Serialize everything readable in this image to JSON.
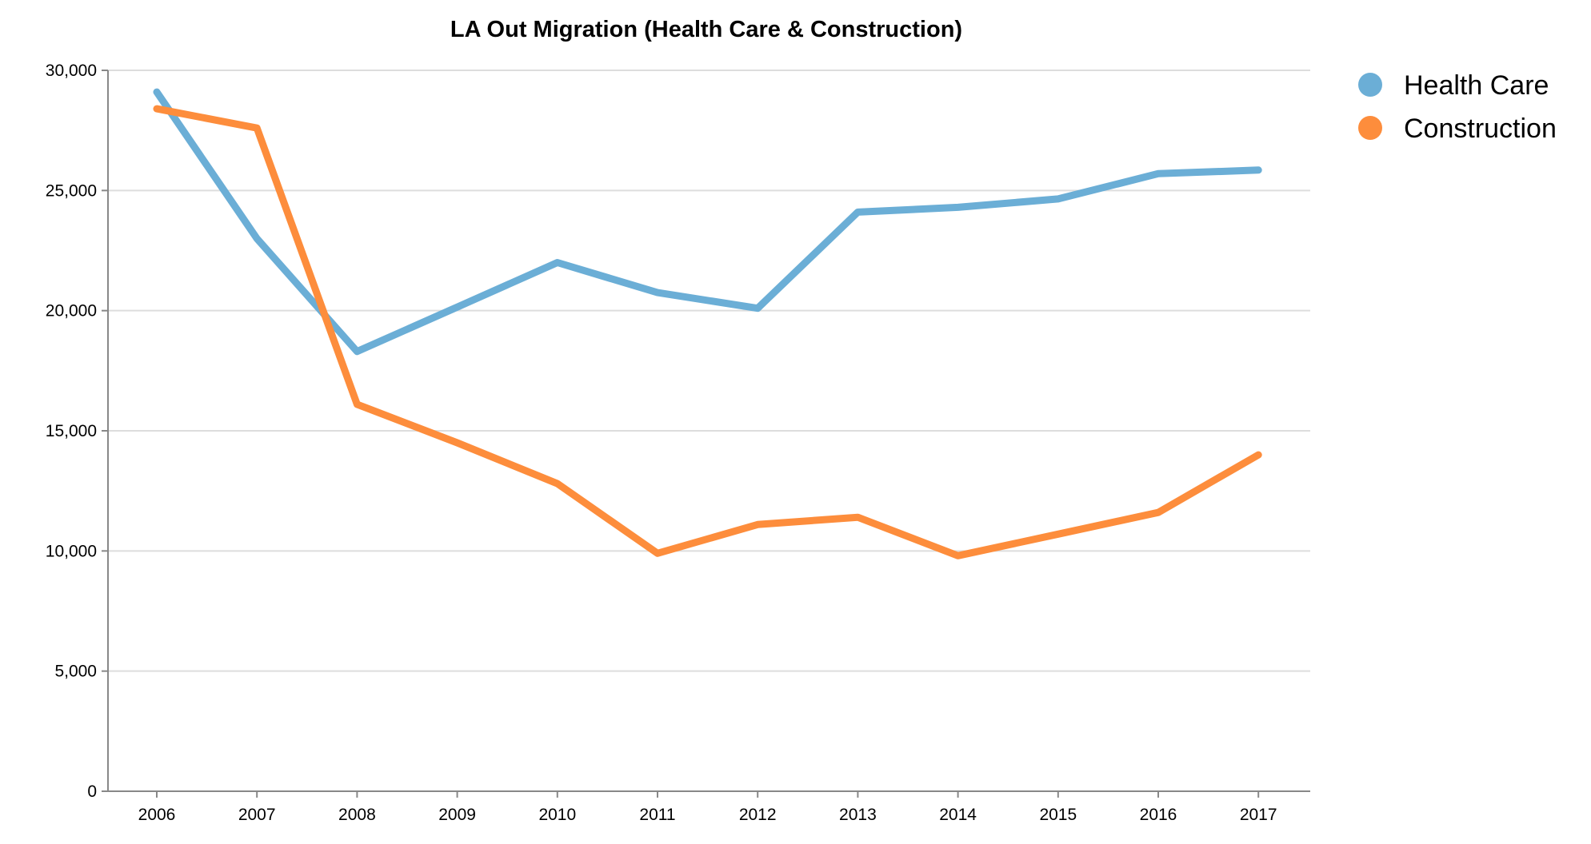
{
  "chart_data": {
    "type": "line",
    "title": "LA Out Migration (Health Care & Construction)",
    "xlabel": "",
    "ylabel": "",
    "x": [
      "2006",
      "2007",
      "2008",
      "2009",
      "2010",
      "2011",
      "2012",
      "2013",
      "2014",
      "2015",
      "2016",
      "2017"
    ],
    "y_ticks": [
      "0",
      "5,000",
      "10,000",
      "15,000",
      "20,000",
      "25,000",
      "30,000"
    ],
    "ylim": [
      0,
      30000
    ],
    "y_tick_values": [
      0,
      5000,
      10000,
      15000,
      20000,
      25000,
      30000
    ],
    "grid": true,
    "legend_position": "top-right",
    "series": [
      {
        "name": "Health Care",
        "color": "#6baed6",
        "values": [
          29100,
          23000,
          18300,
          20150,
          22000,
          20750,
          20100,
          24100,
          24300,
          24650,
          25700,
          25850
        ]
      },
      {
        "name": "Construction",
        "color": "#fd8d3c",
        "values": [
          28400,
          27600,
          16100,
          14500,
          12800,
          9900,
          11100,
          11400,
          9800,
          10700,
          11600,
          14000
        ]
      }
    ]
  }
}
